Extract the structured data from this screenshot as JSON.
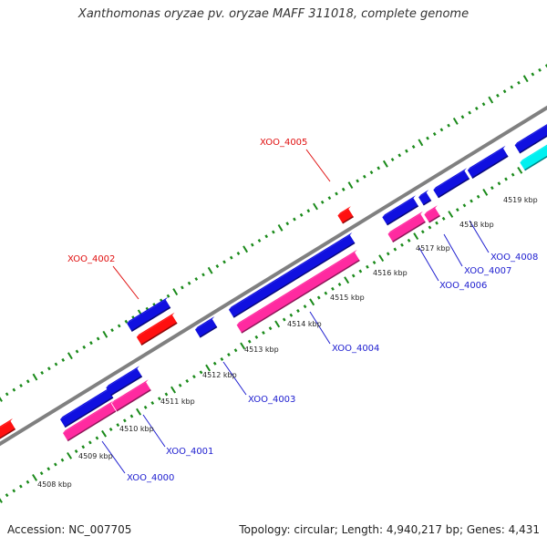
{
  "title": "Xanthomonas oryzae pv. oryzae MAFF 311018, complete genome",
  "footer": {
    "accession": "Accession: NC_007705",
    "topology": "Topology: circular; Length: 4,940,217 bp; Genes: 4,431"
  },
  "colors": {
    "backbone": "#808080",
    "forward_gene": "#1010e0",
    "reverse_gene": "#ff1010",
    "pink_gene": "#ff2aa0",
    "cyan_gene": "#00f0f0",
    "tick": "#1a8a1a",
    "forward_label": "#2020d0",
    "reverse_label": "#e01010"
  },
  "scale_labels": [
    "4508 kbp",
    "4509 kbp",
    "4510 kbp",
    "4511 kbp",
    "4512 kbp",
    "4513 kbp",
    "4514 kbp",
    "4515 kbp",
    "4516 kbp",
    "4517 kbp",
    "4518 kbp",
    "4519 kbp"
  ],
  "gene_labels": [
    {
      "text": "XOO_4000",
      "strand": "forward"
    },
    {
      "text": "XOO_4001",
      "strand": "forward"
    },
    {
      "text": "XOO_4002",
      "strand": "reverse"
    },
    {
      "text": "XOO_4003",
      "strand": "forward"
    },
    {
      "text": "XOO_4004",
      "strand": "forward"
    },
    {
      "text": "XOO_4005",
      "strand": "reverse"
    },
    {
      "text": "XOO_4006",
      "strand": "forward"
    },
    {
      "text": "XOO_4007",
      "strand": "forward"
    },
    {
      "text": "XOO_4008",
      "strand": "forward"
    }
  ]
}
